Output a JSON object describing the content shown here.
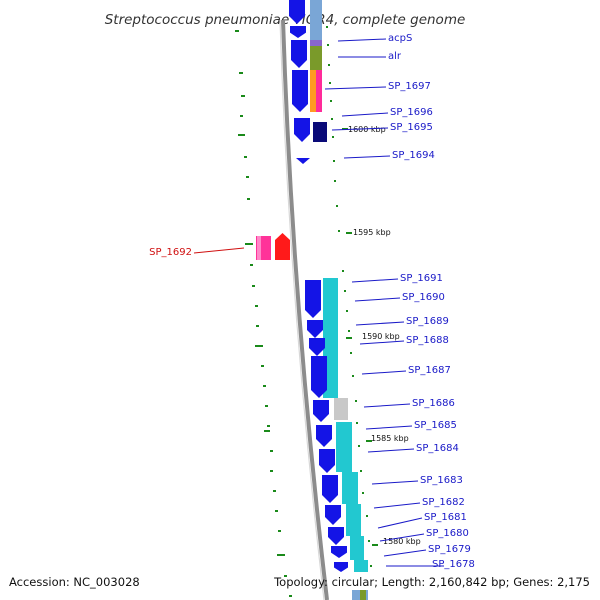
{
  "title": "Streptococcus pneumoniae TIGR4, complete genome",
  "footer": {
    "accession": "Accession: NC_003028",
    "topology": "Topology: circular; Length: 2,160,842 bp; Genes: 2,175"
  },
  "colors": {
    "backbone": "#8c8c8c",
    "gene_blue": "#1414e6",
    "gene_dark": "#0a0a78",
    "label_blue": "#1a1ac8",
    "label_red": "#d01010",
    "highlight_red": "#ff1a1a",
    "highlight_pink": "#ff3399",
    "cyan": "#22c8d0",
    "olive": "#7a9a2a",
    "orange": "#ff9922",
    "magenta": "#ff2a9a",
    "purple": "#8866cc",
    "gray": "#c8c8c8",
    "tick_green": "#1a8a1a"
  },
  "kbp_marks": [
    "1600 kbp",
    "1595 kbp",
    "1590 kbp",
    "1585 kbp",
    "1580 kbp"
  ],
  "genes": [
    {
      "label": "acpS",
      "highlight": false
    },
    {
      "label": "alr",
      "highlight": false
    },
    {
      "label": "SP_1697",
      "highlight": false
    },
    {
      "label": "SP_1696",
      "highlight": false
    },
    {
      "label": "SP_1695",
      "highlight": false
    },
    {
      "label": "SP_1694",
      "highlight": false
    },
    {
      "label": "SP_1692",
      "highlight": true
    },
    {
      "label": "SP_1691",
      "highlight": false
    },
    {
      "label": "SP_1690",
      "highlight": false
    },
    {
      "label": "SP_1689",
      "highlight": false
    },
    {
      "label": "SP_1688",
      "highlight": false
    },
    {
      "label": "SP_1687",
      "highlight": false
    },
    {
      "label": "SP_1686",
      "highlight": false
    },
    {
      "label": "SP_1685",
      "highlight": false
    },
    {
      "label": "SP_1684",
      "highlight": false
    },
    {
      "label": "SP_1683",
      "highlight": false
    },
    {
      "label": "SP_1682",
      "highlight": false
    },
    {
      "label": "SP_1681",
      "highlight": false
    },
    {
      "label": "SP_1680",
      "highlight": false
    },
    {
      "label": "SP_1679",
      "highlight": false
    },
    {
      "label": "SP_1678",
      "highlight": false
    }
  ]
}
